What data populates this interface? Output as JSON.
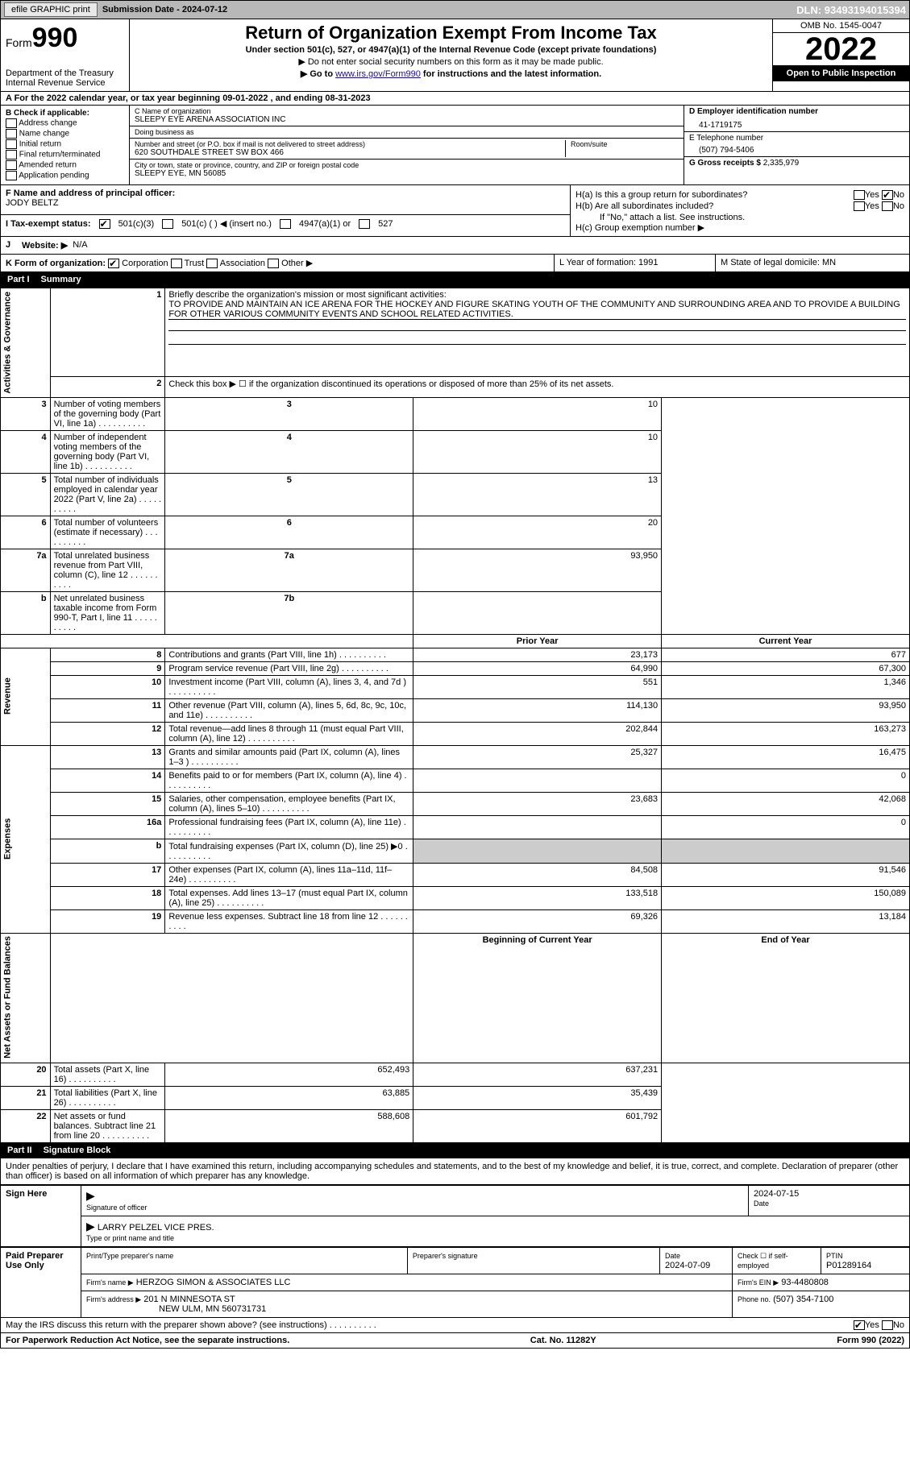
{
  "topbar": {
    "efile": "efile GRAPHIC print",
    "submission": "Submission Date - 2024-07-12",
    "dln": "DLN: 93493194015394"
  },
  "header": {
    "form": "Form",
    "form_num": "990",
    "dept": "Department of the Treasury",
    "irs": "Internal Revenue Service",
    "title": "Return of Organization Exempt From Income Tax",
    "sub1": "Under section 501(c), 527, or 4947(a)(1) of the Internal Revenue Code (except private foundations)",
    "sub2": "▶ Do not enter social security numbers on this form as it may be made public.",
    "sub3_pre": "▶ Go to ",
    "sub3_link": "www.irs.gov/Form990",
    "sub3_post": " for instructions and the latest information.",
    "omb": "OMB No. 1545-0047",
    "year": "2022",
    "inspection": "Open to Public Inspection"
  },
  "row_a": "A  For the 2022 calendar year, or tax year beginning 09-01-2022    , and ending 08-31-2023",
  "section_b": {
    "title": "B Check if applicable:",
    "opts": [
      "Address change",
      "Name change",
      "Initial return",
      "Final return/terminated",
      "Amended return",
      "Application pending"
    ]
  },
  "section_c": {
    "name_lbl": "C Name of organization",
    "name": "SLEEPY EYE ARENA ASSOCIATION INC",
    "dba_lbl": "Doing business as",
    "dba": "",
    "addr_lbl": "Number and street (or P.O. box if mail is not delivered to street address)",
    "room_lbl": "Room/suite",
    "addr": "620 SOUTHDALE STREET SW BOX 466",
    "city_lbl": "City or town, state or province, country, and ZIP or foreign postal code",
    "city": "SLEEPY EYE, MN  56085"
  },
  "section_d": {
    "ein_lbl": "D Employer identification number",
    "ein": "41-1719175",
    "tel_lbl": "E Telephone number",
    "tel": "(507) 794-5406",
    "gross_lbl": "G Gross receipts $",
    "gross": "2,335,979"
  },
  "section_f": {
    "lbl": "F Name and address of principal officer:",
    "name": "JODY BELTZ"
  },
  "section_h": {
    "ha": "H(a)  Is this a group return for subordinates?",
    "hb": "H(b)  Are all subordinates included?",
    "hb_note": "If \"No,\" attach a list. See instructions.",
    "hc": "H(c)  Group exemption number ▶"
  },
  "row_i": {
    "lbl": "I   Tax-exempt status:",
    "o1": "501(c)(3)",
    "o2": "501(c) (  ) ◀ (insert no.)",
    "o3": "4947(a)(1) or",
    "o4": "527"
  },
  "row_j": {
    "lbl": "Website: ▶",
    "val": "N/A"
  },
  "row_k": {
    "k1_lbl": "K Form of organization:",
    "opts": [
      "Corporation",
      "Trust",
      "Association",
      "Other ▶"
    ],
    "k2": "L Year of formation: 1991",
    "k3": "M State of legal domicile: MN"
  },
  "part1": {
    "num": "Part I",
    "title": "Summary"
  },
  "summary": {
    "l1_lbl": "Briefly describe the organization's mission or most significant activities:",
    "l1_txt": "TO PROVIDE AND MAINTAIN AN ICE ARENA FOR THE HOCKEY AND FIGURE SKATING YOUTH OF THE COMMUNITY AND SURROUNDING AREA AND TO PROVIDE A BUILDING FOR OTHER VARIOUS COMMUNITY EVENTS AND SCHOOL RELATED ACTIVITIES.",
    "l2": "Check this box ▶ ☐  if the organization discontinued its operations or disposed of more than 25% of its net assets.",
    "rows_gov": [
      {
        "n": "3",
        "t": "Number of voting members of the governing body (Part VI, line 1a)",
        "b": "3",
        "v": "10"
      },
      {
        "n": "4",
        "t": "Number of independent voting members of the governing body (Part VI, line 1b)",
        "b": "4",
        "v": "10"
      },
      {
        "n": "5",
        "t": "Total number of individuals employed in calendar year 2022 (Part V, line 2a)",
        "b": "5",
        "v": "13"
      },
      {
        "n": "6",
        "t": "Total number of volunteers (estimate if necessary)",
        "b": "6",
        "v": "20"
      },
      {
        "n": "7a",
        "t": "Total unrelated business revenue from Part VIII, column (C), line 12",
        "b": "7a",
        "v": "93,950"
      },
      {
        "n": "b",
        "t": "Net unrelated business taxable income from Form 990-T, Part I, line 11",
        "b": "7b",
        "v": ""
      }
    ],
    "hdr_prior": "Prior Year",
    "hdr_curr": "Current Year",
    "rows_rev": [
      {
        "n": "8",
        "t": "Contributions and grants (Part VIII, line 1h)",
        "p": "23,173",
        "c": "677"
      },
      {
        "n": "9",
        "t": "Program service revenue (Part VIII, line 2g)",
        "p": "64,990",
        "c": "67,300"
      },
      {
        "n": "10",
        "t": "Investment income (Part VIII, column (A), lines 3, 4, and 7d )",
        "p": "551",
        "c": "1,346"
      },
      {
        "n": "11",
        "t": "Other revenue (Part VIII, column (A), lines 5, 6d, 8c, 9c, 10c, and 11e)",
        "p": "114,130",
        "c": "93,950"
      },
      {
        "n": "12",
        "t": "Total revenue—add lines 8 through 11 (must equal Part VIII, column (A), line 12)",
        "p": "202,844",
        "c": "163,273"
      }
    ],
    "rows_exp": [
      {
        "n": "13",
        "t": "Grants and similar amounts paid (Part IX, column (A), lines 1–3 )",
        "p": "25,327",
        "c": "16,475"
      },
      {
        "n": "14",
        "t": "Benefits paid to or for members (Part IX, column (A), line 4)",
        "p": "",
        "c": "0"
      },
      {
        "n": "15",
        "t": "Salaries, other compensation, employee benefits (Part IX, column (A), lines 5–10)",
        "p": "23,683",
        "c": "42,068"
      },
      {
        "n": "16a",
        "t": "Professional fundraising fees (Part IX, column (A), line 11e)",
        "p": "",
        "c": "0"
      },
      {
        "n": "b",
        "t": "Total fundraising expenses (Part IX, column (D), line 25) ▶0",
        "p": "shaded",
        "c": "shaded"
      },
      {
        "n": "17",
        "t": "Other expenses (Part IX, column (A), lines 11a–11d, 11f–24e)",
        "p": "84,508",
        "c": "91,546"
      },
      {
        "n": "18",
        "t": "Total expenses. Add lines 13–17 (must equal Part IX, column (A), line 25)",
        "p": "133,518",
        "c": "150,089"
      },
      {
        "n": "19",
        "t": "Revenue less expenses. Subtract line 18 from line 12",
        "p": "69,326",
        "c": "13,184"
      }
    ],
    "hdr_beg": "Beginning of Current Year",
    "hdr_end": "End of Year",
    "rows_net": [
      {
        "n": "20",
        "t": "Total assets (Part X, line 16)",
        "p": "652,493",
        "c": "637,231"
      },
      {
        "n": "21",
        "t": "Total liabilities (Part X, line 26)",
        "p": "63,885",
        "c": "35,439"
      },
      {
        "n": "22",
        "t": "Net assets or fund balances. Subtract line 21 from line 20",
        "p": "588,608",
        "c": "601,792"
      }
    ],
    "vlabels": {
      "gov": "Activities & Governance",
      "rev": "Revenue",
      "exp": "Expenses",
      "net": "Net Assets or Fund Balances"
    }
  },
  "part2": {
    "num": "Part II",
    "title": "Signature Block"
  },
  "sig": {
    "decl": "Under penalties of perjury, I declare that I have examined this return, including accompanying schedules and statements, and to the best of my knowledge and belief, it is true, correct, and complete. Declaration of preparer (other than officer) is based on all information of which preparer has any knowledge.",
    "sign_here": "Sign Here",
    "sig_officer": "Signature of officer",
    "sig_date": "2024-07-15",
    "date_lbl": "Date",
    "officer_name": "LARRY PELZEL VICE PRES.",
    "name_lbl": "Type or print name and title",
    "paid": "Paid Preparer Use Only",
    "prep_name_lbl": "Print/Type preparer's name",
    "prep_sig_lbl": "Preparer's signature",
    "prep_date_lbl": "Date",
    "prep_date": "2024-07-09",
    "self_emp": "Check ☐ if self-employed",
    "ptin_lbl": "PTIN",
    "ptin": "P01289164",
    "firm_name_lbl": "Firm's name    ▶",
    "firm_name": "HERZOG SIMON & ASSOCIATES LLC",
    "firm_ein_lbl": "Firm's EIN ▶",
    "firm_ein": "93-4480808",
    "firm_addr_lbl": "Firm's address ▶",
    "firm_addr": "201 N MINNESOTA ST",
    "firm_city": "NEW ULM, MN  560731731",
    "firm_phone_lbl": "Phone no.",
    "firm_phone": "(507) 354-7100"
  },
  "discuss": "May the IRS discuss this return with the preparer shown above? (see instructions)",
  "footer": {
    "left": "For Paperwork Reduction Act Notice, see the separate instructions.",
    "mid": "Cat. No. 11282Y",
    "right": "Form 990 (2022)"
  }
}
